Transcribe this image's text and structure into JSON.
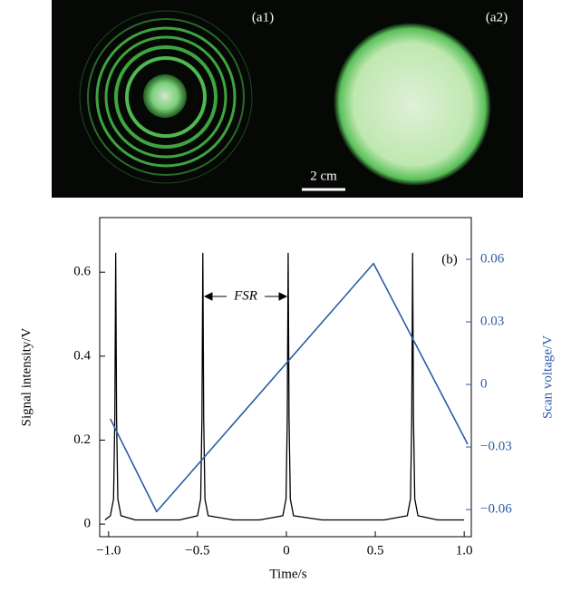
{
  "panel_a": {
    "labels": [
      "(a1)",
      "(a2)"
    ],
    "scale_bar": "2 cm"
  },
  "chart_data": {
    "type": "line",
    "panel_label": "(b)",
    "annotation": "FSR",
    "xlabel": "Time/s",
    "ylabel": "Signal intensity/V",
    "y2label": "Scan voltage/V",
    "xlim": [
      -1.05,
      1.04
    ],
    "ylim": [
      -0.03,
      0.73
    ],
    "y2lim": [
      -0.073,
      0.08
    ],
    "xticks": [
      {
        "value": -1.0,
        "label": "−1.0"
      },
      {
        "value": -0.5,
        "label": "−0.5"
      },
      0,
      0.5,
      {
        "value": 1.0,
        "label": "1.0"
      }
    ],
    "yticks": [
      0,
      0.2,
      0.4,
      0.6
    ],
    "y2ticks": [
      0.06,
      0.03,
      0,
      {
        "value": -0.03,
        "label": "−0.03"
      },
      {
        "value": -0.06,
        "label": "−0.06"
      }
    ],
    "series": [
      {
        "color": "#000000",
        "x": [
          -1.02,
          -0.99,
          -0.972,
          -0.965,
          -0.96,
          -0.955,
          -0.948,
          -0.93,
          -0.85,
          -0.7,
          -0.6,
          -0.5,
          -0.482,
          -0.475,
          -0.47,
          -0.465,
          -0.458,
          -0.44,
          -0.3,
          -0.15,
          -0.02,
          -0.002,
          0.005,
          0.01,
          0.015,
          0.022,
          0.04,
          0.2,
          0.4,
          0.55,
          0.68,
          0.698,
          0.705,
          0.71,
          0.715,
          0.722,
          0.74,
          0.85,
          1.0
        ],
        "values": [
          0.01,
          0.02,
          0.06,
          0.25,
          0.645,
          0.25,
          0.06,
          0.02,
          0.01,
          0.01,
          0.01,
          0.02,
          0.06,
          0.25,
          0.645,
          0.25,
          0.06,
          0.02,
          0.01,
          0.01,
          0.02,
          0.06,
          0.25,
          0.645,
          0.25,
          0.06,
          0.02,
          0.01,
          0.01,
          0.01,
          0.02,
          0.06,
          0.25,
          0.645,
          0.25,
          0.06,
          0.02,
          0.01,
          0.01
        ]
      },
      {
        "color": "#2b5ca8",
        "axis": "y2",
        "x": [
          -0.99,
          -0.73,
          0.49,
          1.02
        ],
        "values": [
          -0.0165,
          -0.061,
          0.058,
          -0.0287
        ]
      }
    ]
  }
}
